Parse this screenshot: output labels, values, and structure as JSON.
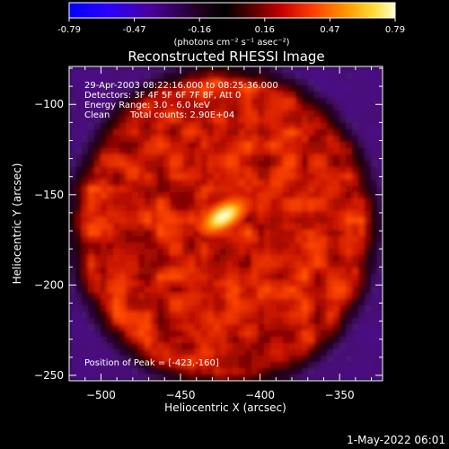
{
  "colorbar": {
    "tick_labels": [
      "-0.79",
      "-0.47",
      "-0.16",
      "0.16",
      "0.47",
      "0.79"
    ],
    "unit_label": "(photons cm⁻² s⁻¹ asec⁻²)",
    "range": [
      -0.79,
      0.79
    ]
  },
  "chart_data": {
    "type": "heatmap",
    "title": "Reconstructed RHESSI Image",
    "xlabel": "Heliocentric X (arcsec)",
    "ylabel": "Heliocentric Y (arcsec)",
    "xlim": [
      -520,
      -323
    ],
    "ylim": [
      -253,
      -79
    ],
    "x_ticks": [
      -500,
      -450,
      -400,
      -350
    ],
    "y_ticks": [
      -100,
      -150,
      -200,
      -250
    ],
    "grid": false,
    "colormap": "black-purple-red-orange-yellow-white (IDL rainbow-like)",
    "annotations": {
      "time_range": "29-Apr-2003 08:22:16.000 to 08:25:36.000",
      "detectors": "Detectors: 3F 4F 5F 6F 7F 8F, Att 0",
      "energy_range": "Energy Range: 3.0 - 6.0 keV",
      "method": "Clean",
      "total_counts": "Total counts: 2.90E+04",
      "peak": "Position of Peak = [-423,-160]"
    },
    "peak": {
      "x": -423,
      "y": -160,
      "value": 0.79
    },
    "background_value": -0.3
  },
  "footer": {
    "date": "1-May-2022 06:01"
  }
}
